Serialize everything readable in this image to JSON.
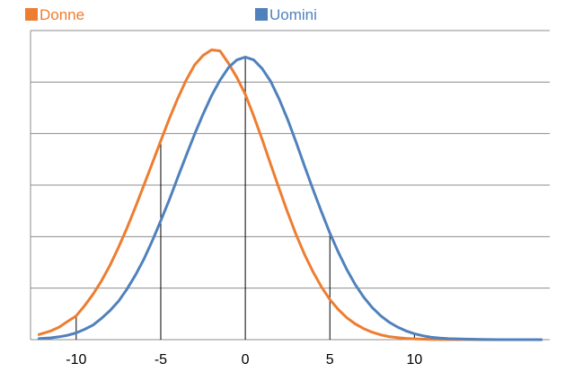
{
  "chart_data": {
    "type": "line",
    "title": "",
    "xlabel": "",
    "ylabel": "",
    "xlim": [
      -12.7,
      18
    ],
    "ylim": [
      0,
      0.12
    ],
    "grid": true,
    "legend_position": "top",
    "x_ticks": [
      {
        "value": -10,
        "label": "-10"
      },
      {
        "value": -5,
        "label": "-5"
      },
      {
        "value": 0,
        "label": "0"
      },
      {
        "value": 5,
        "label": "5"
      },
      {
        "value": 10,
        "label": "10"
      }
    ],
    "series": [
      {
        "name": "Donne",
        "color": "#ED7D31",
        "x": [
          -12.2,
          -11.5,
          -11,
          -10.5,
          -10,
          -9.5,
          -9,
          -8.5,
          -8,
          -7.5,
          -7,
          -6.5,
          -6,
          -5.5,
          -5,
          -4.5,
          -4,
          -3.5,
          -3,
          -2.5,
          -2,
          -1.5,
          -1,
          -0.5,
          0,
          0.5,
          1,
          1.5,
          2,
          2.5,
          3,
          3.5,
          4,
          4.5,
          5,
          5.5,
          6,
          6.5,
          7,
          7.5,
          8,
          8.5,
          9,
          9.5,
          10,
          11,
          12,
          13,
          14,
          15,
          16,
          17,
          17.5
        ],
        "y": [
          0.002,
          0.0034,
          0.0049,
          0.0071,
          0.0092,
          0.0132,
          0.0177,
          0.0229,
          0.0289,
          0.0358,
          0.0433,
          0.0514,
          0.0599,
          0.0685,
          0.0772,
          0.0857,
          0.0936,
          0.1007,
          0.1066,
          0.1103,
          0.1125,
          0.1121,
          0.1073,
          0.1018,
          0.0952,
          0.0868,
          0.0777,
          0.0681,
          0.0586,
          0.0494,
          0.0408,
          0.0331,
          0.0264,
          0.0205,
          0.0156,
          0.0117,
          0.0085,
          0.0061,
          0.0043,
          0.0029,
          0.0019,
          0.0012,
          0.0008,
          0.0005,
          0.0003,
          0.0001,
          5e-05,
          2e-05,
          0,
          0,
          0,
          0,
          0
        ]
      },
      {
        "name": "Uomini",
        "color": "#4F81BD",
        "x": [
          -12.2,
          -11.5,
          -11,
          -10.5,
          -10,
          -9.5,
          -9,
          -8.5,
          -8,
          -7.5,
          -7,
          -6.5,
          -6,
          -5.5,
          -5,
          -4.5,
          -4,
          -3.5,
          -3,
          -2.5,
          -2,
          -1.5,
          -1,
          -0.5,
          0,
          0.5,
          1,
          1.5,
          2,
          2.5,
          3,
          3.5,
          4,
          4.5,
          5,
          5.5,
          6,
          6.5,
          7,
          7.5,
          8,
          8.5,
          9,
          9.5,
          10,
          10.5,
          11,
          11.5,
          12,
          13,
          14,
          15,
          16,
          17,
          17.5
        ],
        "y": [
          0.0004,
          0.0007,
          0.0011,
          0.0017,
          0.0026,
          0.004,
          0.0057,
          0.0083,
          0.0113,
          0.0149,
          0.0196,
          0.025,
          0.0312,
          0.0384,
          0.0462,
          0.0542,
          0.0629,
          0.0714,
          0.0797,
          0.0875,
          0.0947,
          0.1007,
          0.1056,
          0.1086,
          0.1097,
          0.1086,
          0.1052,
          0.1003,
          0.0934,
          0.0855,
          0.0767,
          0.0674,
          0.0584,
          0.0497,
          0.0414,
          0.0339,
          0.0272,
          0.0214,
          0.0165,
          0.0125,
          0.0093,
          0.0068,
          0.0049,
          0.0034,
          0.0023,
          0.0015,
          0.0009,
          0.0006,
          0.0004,
          0.0002,
          0.0001,
          0,
          0,
          0,
          0
        ]
      }
    ],
    "vertical_markers": [
      {
        "x": -10,
        "series": "Donne"
      },
      {
        "x": -5,
        "series": "Donne"
      },
      {
        "x": 0,
        "series": "Uomini"
      },
      {
        "x": 5,
        "series": "Uomini"
      },
      {
        "x": 10,
        "series": "Uomini"
      }
    ]
  }
}
